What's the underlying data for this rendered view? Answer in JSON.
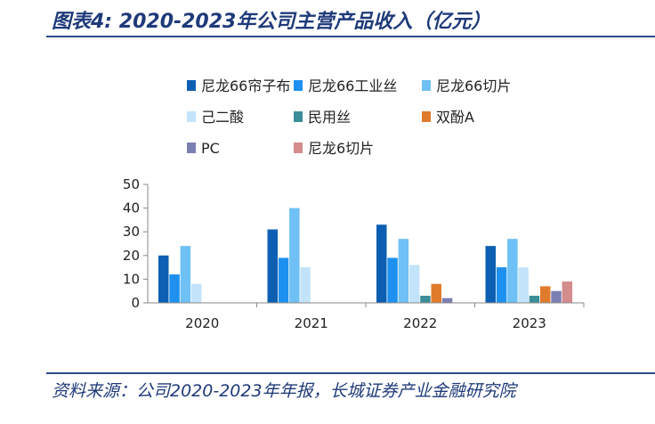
{
  "title": "图表4:  2020-2023年公司主营产品收入（亿元）",
  "source": "资料来源：公司2020-2023年年报，长城证券产业金融研究院",
  "chart_data": {
    "type": "bar",
    "categories": [
      "2020",
      "2021",
      "2022",
      "2023"
    ],
    "ylim": [
      0,
      50
    ],
    "yticks": [
      0,
      10,
      20,
      30,
      40,
      50
    ],
    "legend_position": "top",
    "series": [
      {
        "name": "尼龙66帘子布",
        "color": "#0d5fb3",
        "values": [
          20,
          31,
          33,
          24
        ]
      },
      {
        "name": "尼龙66工业丝",
        "color": "#1e90f0",
        "values": [
          12,
          19,
          19,
          15
        ]
      },
      {
        "name": "尼龙66切片",
        "color": "#6ec0f5",
        "values": [
          24,
          40,
          27,
          27
        ]
      },
      {
        "name": "己二酸",
        "color": "#c2e3fa",
        "values": [
          8,
          15,
          16,
          15
        ]
      },
      {
        "name": "民用丝",
        "color": "#3b8e98",
        "values": [
          0,
          0,
          3,
          3
        ]
      },
      {
        "name": "双酚A",
        "color": "#e07b2c",
        "values": [
          0,
          0,
          8,
          7
        ]
      },
      {
        "name": "PC",
        "color": "#7b7fb4",
        "values": [
          0,
          0,
          2,
          5
        ]
      },
      {
        "name": "尼龙6切片",
        "color": "#d48c8c",
        "values": [
          0,
          0,
          0,
          9
        ]
      }
    ]
  }
}
